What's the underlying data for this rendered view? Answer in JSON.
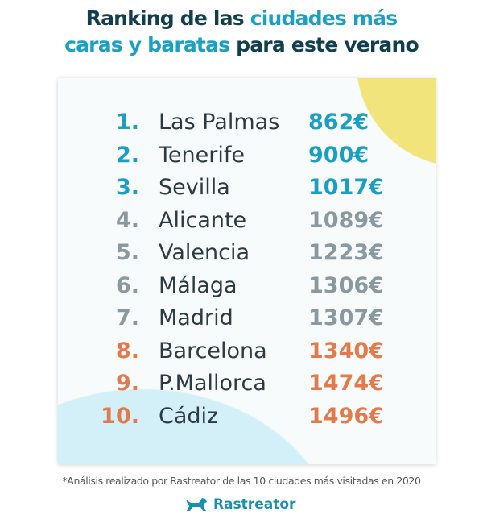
{
  "title": {
    "part1": "Ranking de las ",
    "part2": "ciudades más",
    "part3": "caras y baratas",
    "part4": " para este verano"
  },
  "colors": {
    "cheap": "#1a9fc2",
    "mid": "#8a98a0",
    "expensive": "#e37a4c",
    "title": "#113f4d"
  },
  "ranking": [
    {
      "rank": "1.",
      "city": "Las Palmas",
      "price": "862€",
      "tier": "cheap"
    },
    {
      "rank": "2.",
      "city": "Tenerife",
      "price": "900€",
      "tier": "cheap"
    },
    {
      "rank": "3.",
      "city": "Sevilla",
      "price": "1017€",
      "tier": "cheap"
    },
    {
      "rank": "4.",
      "city": "Alicante",
      "price": "1089€",
      "tier": "mid"
    },
    {
      "rank": "5.",
      "city": "Valencia",
      "price": "1223€",
      "tier": "mid"
    },
    {
      "rank": "6.",
      "city": "Málaga",
      "price": "1306€",
      "tier": "mid"
    },
    {
      "rank": "7.",
      "city": "Madrid",
      "price": "1307€",
      "tier": "mid"
    },
    {
      "rank": "8.",
      "city": "Barcelona",
      "price": "1340€",
      "tier": "expensive"
    },
    {
      "rank": "9.",
      "city": "P.Mallorca",
      "price": "1474€",
      "tier": "expensive"
    },
    {
      "rank": "10.",
      "city": "Cádiz",
      "price": "1496€",
      "tier": "expensive"
    }
  ],
  "footnote": "*Análisis realizado por Rastreator de las 10 ciudades más visitadas en 2020",
  "logo": {
    "text": "Rastreator",
    "icon": "dog-icon"
  }
}
